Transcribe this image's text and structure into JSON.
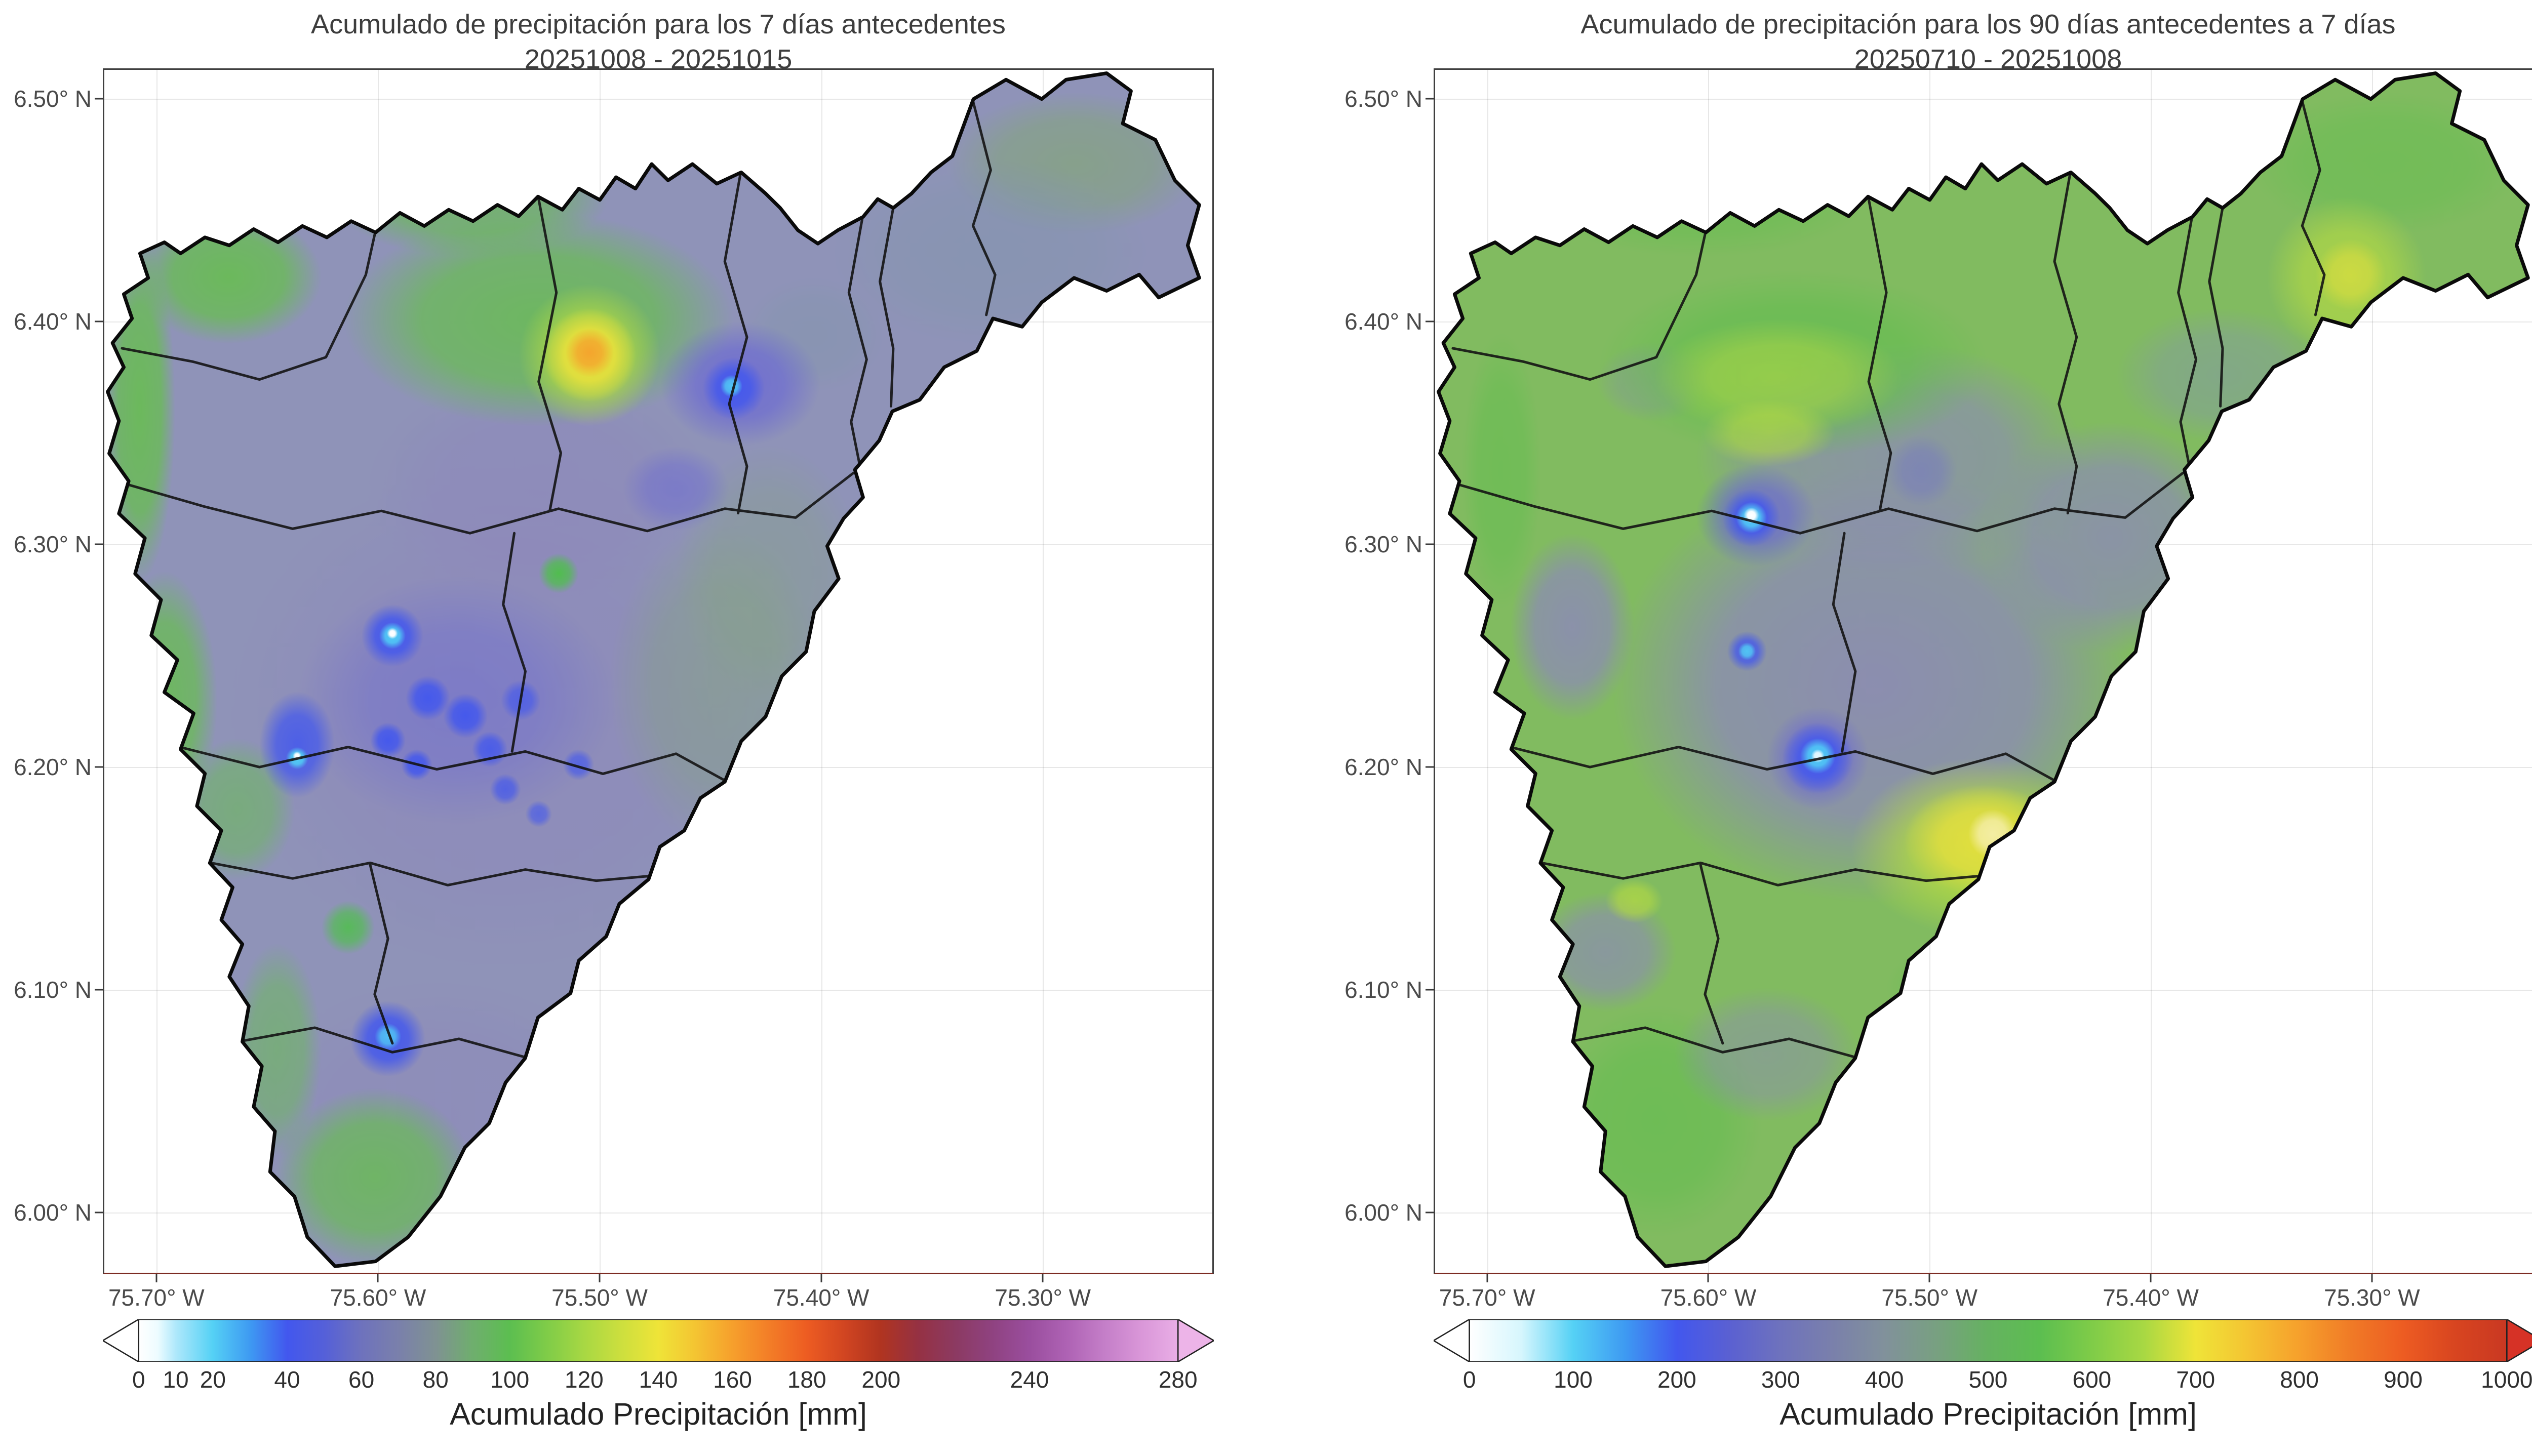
{
  "figure": {
    "background": "#ffffff"
  },
  "axes": {
    "y_ticks": [
      "6.50° N",
      "6.40° N",
      "6.30° N",
      "6.20° N",
      "6.10° N",
      "6.00° N"
    ],
    "x_ticks": [
      "75.70° W",
      "75.60° W",
      "75.50° W",
      "75.40° W",
      "75.30° W"
    ]
  },
  "panels": [
    {
      "title_line1": "Acumulado de precipitación para los 7 días antecedentes",
      "title_line2": "20251008 - 20251015",
      "colorbar": {
        "label": "Acumulado Precipitación [mm]",
        "ticks": [
          0,
          10,
          20,
          40,
          60,
          80,
          100,
          120,
          140,
          160,
          180,
          200,
          240,
          280
        ],
        "max": 280,
        "extend": "both"
      }
    },
    {
      "title_line1": "Acumulado de precipitación para los 90 días antecedentes a 7 días",
      "title_line2": "20250710 - 20251008",
      "colorbar": {
        "label": "Acumulado Precipitación [mm]",
        "ticks": [
          0,
          100,
          200,
          300,
          400,
          500,
          600,
          700,
          800,
          900,
          1000
        ],
        "max": 1000,
        "extend": "both"
      }
    }
  ],
  "chart_data": [
    {
      "type": "heatmap",
      "subtype": "geospatial-precipitation-map",
      "title": "Acumulado de precipitación para los 7 días antecedentes",
      "subtitle_period": "20251008 - 20251015",
      "x_axis": {
        "tick_labels": [
          "75.70° W",
          "75.60° W",
          "75.50° W",
          "75.40° W",
          "75.30° W"
        ],
        "range_deg_w": [
          75.72,
          75.22
        ]
      },
      "y_axis": {
        "tick_labels": [
          "6.50° N",
          "6.40° N",
          "6.30° N",
          "6.20° N",
          "6.10° N",
          "6.00° N"
        ],
        "range_deg_n": [
          5.97,
          6.51
        ]
      },
      "colorbar": {
        "label": "Acumulado Precipitación [mm]",
        "ticks": [
          0,
          10,
          20,
          40,
          60,
          80,
          100,
          120,
          140,
          160,
          180,
          200,
          240,
          280
        ],
        "vmin": 0,
        "vmax": 280,
        "extend": "both"
      },
      "grid": true,
      "background_field_mm": [
        60,
        80
      ],
      "features": [
        {
          "lon_w": 75.54,
          "lat_n": 6.39,
          "value_mm": 155,
          "desc": "yellow-orange local maximum near northern basin center"
        },
        {
          "lon_w": 75.47,
          "lat_n": 6.37,
          "value_mm": 45,
          "desc": "blue low pocket at northeast arm junction"
        },
        {
          "lon_w": 75.58,
          "lat_n": 6.26,
          "value_mm": 20,
          "desc": "cyan-white minimum cluster in central valley"
        },
        {
          "lon_w": 75.66,
          "lat_n": 6.21,
          "value_mm": 30,
          "desc": "blue-cyan minimum on the west side"
        },
        {
          "lon_w": 75.62,
          "lat_n": 6.08,
          "value_mm": 40,
          "desc": "blue low pocket in southern lobe"
        },
        {
          "lon_w": 75.69,
          "lat_n": 6.32,
          "value_mm": 100,
          "desc": "green band along western boundary"
        },
        {
          "lon_w": 75.58,
          "lat_n": 6.4,
          "value_mm": 105,
          "desc": "green area across the north"
        },
        {
          "lon_w": 75.6,
          "lat_n": 6.02,
          "value_mm": 95,
          "desc": "green southern tip"
        }
      ]
    },
    {
      "type": "heatmap",
      "subtype": "geospatial-precipitation-map",
      "title": "Acumulado de precipitación para los 90 días antecedentes a 7 días",
      "subtitle_period": "20250710 - 20251008",
      "x_axis": {
        "tick_labels": [
          "75.70° W",
          "75.60° W",
          "75.50° W",
          "75.40° W",
          "75.30° W"
        ],
        "range_deg_w": [
          75.72,
          75.22
        ]
      },
      "y_axis": {
        "tick_labels": [
          "6.50° N",
          "6.40° N",
          "6.30° N",
          "6.20° N",
          "6.10° N",
          "6.00° N"
        ],
        "range_deg_n": [
          5.97,
          6.51
        ]
      },
      "colorbar": {
        "label": "Acumulado Precipitación [mm]",
        "ticks": [
          0,
          100,
          200,
          300,
          400,
          500,
          600,
          700,
          800,
          900,
          1000
        ],
        "vmin": 0,
        "vmax": 1000,
        "extend": "both"
      },
      "grid": true,
      "background_field_mm": [
        500,
        650
      ],
      "features": [
        {
          "lon_w": 75.58,
          "lat_n": 6.32,
          "value_mm": 80,
          "desc": "white-cyan strong minimum"
        },
        {
          "lon_w": 75.55,
          "lat_n": 6.2,
          "value_mm": 150,
          "desc": "cyan-blue minimum"
        },
        {
          "lon_w": 75.58,
          "lat_n": 6.25,
          "value_mm": 220,
          "desc": "small cyan-blue spot"
        },
        {
          "lon_w": 75.46,
          "lat_n": 6.17,
          "value_mm": 720,
          "desc": "pale-yellow maximum zone in the southeast"
        },
        {
          "lon_w": 75.31,
          "lat_n": 6.43,
          "value_mm": 670,
          "desc": "yellow-green high in northeast arm"
        },
        {
          "lon_w": 75.59,
          "lat_n": 6.35,
          "value_mm": 660,
          "desc": "yellow-green band across the north"
        },
        {
          "lon_w": 75.56,
          "lat_n": 6.26,
          "value_mm": 420,
          "desc": "slate-purple central region"
        },
        {
          "lon_w": 75.62,
          "lat_n": 6.11,
          "value_mm": 450,
          "desc": "slate patch in the southwest"
        }
      ]
    }
  ],
  "colors": {
    "low": "#ffffff",
    "cyan": "#55d1f5",
    "blue": "#4257ee",
    "slate": "#6e72bd",
    "green": "#5cbe50",
    "yellow": "#efe438",
    "orange": "#f6a02c",
    "red": "#ed5c22",
    "over_left": "#e9aee6",
    "over_right": "#d63226"
  }
}
